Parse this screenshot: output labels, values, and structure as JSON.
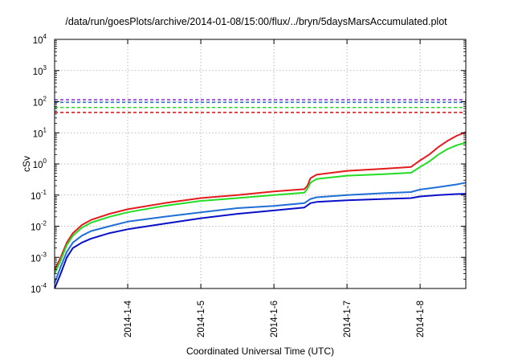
{
  "chart_data": {
    "type": "line",
    "title": "/data/run/goesPlots/archive/2014-01-08/15:00/flux/../bryn/5daysMarsAccumulated.plot",
    "xlabel": "Coordinated Universal Time (UTC)",
    "ylabel": "cSv",
    "y_scale": "log",
    "ylim": [
      0.0001,
      10000
    ],
    "xlim_days": [
      "2014-01-03 00:00",
      "2014-01-08 15:00"
    ],
    "x_ticks": [
      "2014-1-4",
      "2014-1-5",
      "2014-1-6",
      "2014-1-7",
      "2014-1-8"
    ],
    "y_ticks": [
      {
        "base": "10",
        "exp": "-4"
      },
      {
        "base": "10",
        "exp": "-3"
      },
      {
        "base": "10",
        "exp": "-2"
      },
      {
        "base": "10",
        "exp": "-1"
      },
      {
        "base": "10",
        "exp": "0"
      },
      {
        "base": "10",
        "exp": "1"
      },
      {
        "base": "10",
        "exp": "2"
      },
      {
        "base": "10",
        "exp": "3"
      },
      {
        "base": "10",
        "exp": "4"
      }
    ],
    "grid": true,
    "series": [
      {
        "color": "#e41a1c",
        "points": [
          [
            "2014-01-03 00:00",
            0.0004
          ],
          [
            "2014-01-03 02:00",
            0.001
          ],
          [
            "2014-01-03 04:00",
            0.003
          ],
          [
            "2014-01-03 06:00",
            0.006
          ],
          [
            "2014-01-03 09:00",
            0.011
          ],
          [
            "2014-01-03 12:00",
            0.016
          ],
          [
            "2014-01-03 18:00",
            0.025
          ],
          [
            "2014-01-04 00:00",
            0.035
          ],
          [
            "2014-01-04 12:00",
            0.055
          ],
          [
            "2014-01-05 00:00",
            0.08
          ],
          [
            "2014-01-05 12:00",
            0.1
          ],
          [
            "2014-01-06 00:00",
            0.13
          ],
          [
            "2014-01-06 10:00",
            0.155
          ],
          [
            "2014-01-06 11:00",
            0.2
          ],
          [
            "2014-01-06 12:00",
            0.35
          ],
          [
            "2014-01-06 14:00",
            0.45
          ],
          [
            "2014-01-07 00:00",
            0.6
          ],
          [
            "2014-01-07 12:00",
            0.7
          ],
          [
            "2014-01-07 21:00",
            0.8
          ],
          [
            "2014-01-08 00:00",
            1.3
          ],
          [
            "2014-01-08 03:00",
            2.0
          ],
          [
            "2014-01-08 06:00",
            3.5
          ],
          [
            "2014-01-08 09:00",
            5.5
          ],
          [
            "2014-01-08 12:00",
            8.0
          ],
          [
            "2014-01-08 15:00",
            10.5
          ]
        ]
      },
      {
        "color": "#22dd22",
        "points": [
          [
            "2014-01-03 00:00",
            0.0003
          ],
          [
            "2014-01-03 02:00",
            0.0008
          ],
          [
            "2014-01-03 04:00",
            0.0025
          ],
          [
            "2014-01-03 06:00",
            0.005
          ],
          [
            "2014-01-03 09:00",
            0.009
          ],
          [
            "2014-01-03 12:00",
            0.013
          ],
          [
            "2014-01-03 18:00",
            0.02
          ],
          [
            "2014-01-04 00:00",
            0.028
          ],
          [
            "2014-01-04 12:00",
            0.045
          ],
          [
            "2014-01-05 00:00",
            0.065
          ],
          [
            "2014-01-05 12:00",
            0.08
          ],
          [
            "2014-01-06 00:00",
            0.1
          ],
          [
            "2014-01-06 10:00",
            0.12
          ],
          [
            "2014-01-06 11:00",
            0.16
          ],
          [
            "2014-01-06 12:00",
            0.25
          ],
          [
            "2014-01-06 14:00",
            0.33
          ],
          [
            "2014-01-07 00:00",
            0.42
          ],
          [
            "2014-01-07 12:00",
            0.47
          ],
          [
            "2014-01-07 21:00",
            0.52
          ],
          [
            "2014-01-08 00:00",
            0.8
          ],
          [
            "2014-01-08 03:00",
            1.2
          ],
          [
            "2014-01-08 06:00",
            2.0
          ],
          [
            "2014-01-08 09:00",
            3.0
          ],
          [
            "2014-01-08 12:00",
            4.0
          ],
          [
            "2014-01-08 15:00",
            4.8
          ]
        ]
      },
      {
        "color": "#1f6fd6",
        "points": [
          [
            "2014-01-03 00:00",
            0.00015
          ],
          [
            "2014-01-03 02:00",
            0.0005
          ],
          [
            "2014-01-03 04:00",
            0.0015
          ],
          [
            "2014-01-03 06:00",
            0.003
          ],
          [
            "2014-01-03 09:00",
            0.005
          ],
          [
            "2014-01-03 12:00",
            0.007
          ],
          [
            "2014-01-03 18:00",
            0.01
          ],
          [
            "2014-01-04 00:00",
            0.014
          ],
          [
            "2014-01-04 12:00",
            0.02
          ],
          [
            "2014-01-05 00:00",
            0.028
          ],
          [
            "2014-01-05 12:00",
            0.038
          ],
          [
            "2014-01-06 00:00",
            0.045
          ],
          [
            "2014-01-06 10:00",
            0.055
          ],
          [
            "2014-01-06 12:00",
            0.075
          ],
          [
            "2014-01-06 14:00",
            0.085
          ],
          [
            "2014-01-07 00:00",
            0.1
          ],
          [
            "2014-01-07 12:00",
            0.115
          ],
          [
            "2014-01-07 21:00",
            0.125
          ],
          [
            "2014-01-08 00:00",
            0.15
          ],
          [
            "2014-01-08 06:00",
            0.18
          ],
          [
            "2014-01-08 12:00",
            0.22
          ],
          [
            "2014-01-08 15:00",
            0.25
          ]
        ]
      },
      {
        "color": "#0a10c8",
        "points": [
          [
            "2014-01-03 00:00",
            0.0001
          ],
          [
            "2014-01-03 02:00",
            0.0003
          ],
          [
            "2014-01-03 04:00",
            0.001
          ],
          [
            "2014-01-03 06:00",
            0.002
          ],
          [
            "2014-01-03 09:00",
            0.003
          ],
          [
            "2014-01-03 12:00",
            0.004
          ],
          [
            "2014-01-03 18:00",
            0.006
          ],
          [
            "2014-01-04 00:00",
            0.008
          ],
          [
            "2014-01-04 12:00",
            0.012
          ],
          [
            "2014-01-05 00:00",
            0.018
          ],
          [
            "2014-01-05 12:00",
            0.025
          ],
          [
            "2014-01-06 00:00",
            0.032
          ],
          [
            "2014-01-06 10:00",
            0.04
          ],
          [
            "2014-01-06 12:00",
            0.055
          ],
          [
            "2014-01-06 14:00",
            0.06
          ],
          [
            "2014-01-07 00:00",
            0.068
          ],
          [
            "2014-01-07 12:00",
            0.075
          ],
          [
            "2014-01-07 21:00",
            0.08
          ],
          [
            "2014-01-08 00:00",
            0.09
          ],
          [
            "2014-01-08 06:00",
            0.1
          ],
          [
            "2014-01-08 12:00",
            0.108
          ],
          [
            "2014-01-08 15:00",
            0.11
          ]
        ]
      }
    ],
    "reference_lines": [
      {
        "value": 115,
        "color": "#9b30d9",
        "style": "dashed"
      },
      {
        "value": 95,
        "color": "#1f6fd6",
        "style": "dashed"
      },
      {
        "value": 65,
        "color": "#22dd22",
        "style": "dashed"
      },
      {
        "value": 45,
        "color": "#e41a1c",
        "style": "dashed"
      }
    ]
  }
}
